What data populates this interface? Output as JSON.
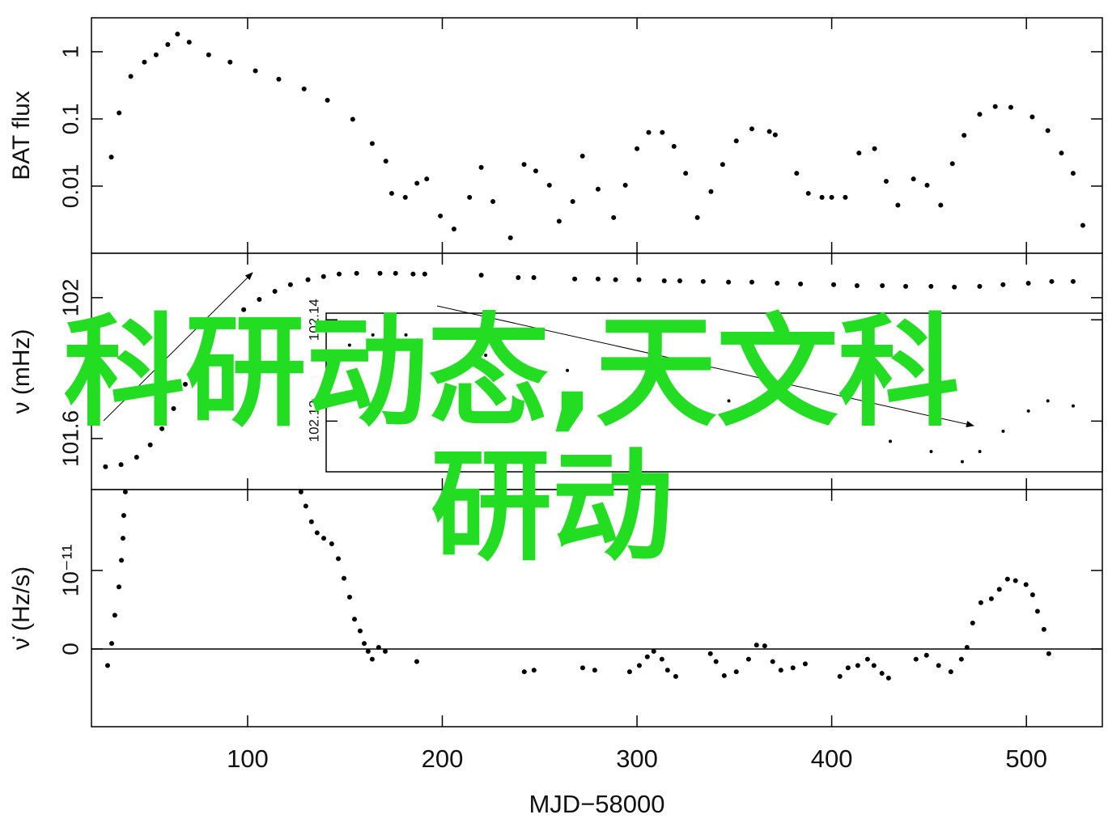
{
  "chart_data": [
    {
      "type": "scatter",
      "ylabel": "BAT flux",
      "yscale": "log",
      "color": "#000000",
      "xlim": [
        19.8,
        539
      ],
      "ylim": [
        0.001,
        3.2
      ],
      "yticks": [
        0.01,
        0.1,
        1
      ],
      "x": [
        30,
        34,
        40,
        47,
        53,
        59,
        64,
        70,
        80,
        91,
        104,
        116,
        129,
        141,
        154,
        164,
        171,
        174,
        181,
        187,
        192,
        199,
        206,
        214,
        220,
        226,
        235,
        242,
        248,
        255,
        260,
        267,
        272,
        280,
        288,
        294,
        300,
        306,
        313,
        319,
        325,
        331,
        338,
        344,
        351,
        359,
        368,
        371,
        382,
        388,
        395,
        400,
        407,
        414,
        422,
        428,
        434,
        442,
        449,
        456,
        462,
        468,
        476,
        484,
        492,
        503,
        511,
        518,
        524,
        529
      ],
      "values": [
        0.027,
        0.123,
        0.43,
        0.7,
        0.9,
        1.28,
        1.83,
        1.39,
        0.9,
        0.7,
        0.52,
        0.39,
        0.28,
        0.19,
        0.099,
        0.043,
        0.0235,
        0.0078,
        0.0068,
        0.011,
        0.0128,
        0.0036,
        0.0023,
        0.0068,
        0.019,
        0.0059,
        0.0017,
        0.021,
        0.0168,
        0.0103,
        0.003,
        0.0059,
        0.028,
        0.009,
        0.0034,
        0.0103,
        0.036,
        0.063,
        0.063,
        0.039,
        0.0155,
        0.0034,
        0.0083,
        0.021,
        0.047,
        0.071,
        0.065,
        0.058,
        0.0155,
        0.0078,
        0.0068,
        0.0068,
        0.0068,
        0.031,
        0.036,
        0.0118,
        0.0052,
        0.0128,
        0.0103,
        0.0052,
        0.0216,
        0.057,
        0.117,
        0.153,
        0.149,
        0.107,
        0.067,
        0.031,
        0.0155,
        0.0026
      ]
    },
    {
      "type": "scatter",
      "ylabel": "ν (mHz)",
      "color": "#000000",
      "xlim": [
        19.8,
        539
      ],
      "ylim": [
        101.455,
        102.126
      ],
      "yticks": [
        101.6,
        102
      ],
      "x": [
        27,
        35,
        43,
        50,
        56,
        62,
        68,
        75,
        81,
        89,
        98,
        106,
        114,
        122,
        131,
        139,
        147,
        156,
        168,
        176,
        185,
        191,
        220,
        239,
        247,
        268,
        280,
        289,
        301,
        314,
        322,
        334,
        347,
        359,
        372,
        384,
        401,
        413,
        426,
        438,
        451,
        463,
        476,
        488,
        501,
        513,
        524
      ],
      "values": [
        101.52,
        101.526,
        101.547,
        101.582,
        101.628,
        101.685,
        101.754,
        101.816,
        101.869,
        101.926,
        101.966,
        101.995,
        102.018,
        102.037,
        102.051,
        102.06,
        102.067,
        102.069,
        102.069,
        102.069,
        102.067,
        102.067,
        102.064,
        102.057,
        102.057,
        102.053,
        102.053,
        102.051,
        102.051,
        102.048,
        102.048,
        102.046,
        102.044,
        102.044,
        102.041,
        102.039,
        102.037,
        102.034,
        102.034,
        102.032,
        102.032,
        102.03,
        102.032,
        102.037,
        102.041,
        102.046,
        102.046
      ]
    },
    {
      "type": "scatter",
      "inset": true,
      "color": "#000000",
      "xlim": [
        140,
        539
      ],
      "ylim": [
        102.11,
        102.1413
      ],
      "yticks": [
        102.12,
        102.14
      ],
      "x": [
        141,
        152,
        164,
        181,
        187,
        222,
        264,
        305,
        347,
        388,
        430,
        451,
        467,
        476,
        488,
        501,
        511,
        524
      ],
      "values": [
        102.131,
        102.135,
        102.137,
        102.137,
        102.136,
        102.133,
        102.13,
        102.127,
        102.124,
        102.121,
        102.116,
        102.114,
        102.112,
        102.114,
        102.118,
        102.122,
        102.124,
        102.123
      ]
    },
    {
      "type": "scatter",
      "ylabel": "ν̇ (Hz/s)",
      "xlabel": "MJD−58000",
      "zero_line": true,
      "color": "#000000",
      "xlim": [
        19.8,
        539
      ],
      "ylim": [
        -9.9e-12,
        2.03e-11
      ],
      "yticks": [
        0,
        {
          "value": 1e-11,
          "label": "10⁻¹¹"
        }
      ],
      "xticks": [
        100,
        200,
        300,
        400,
        500
      ],
      "x": [
        28.1,
        30.2,
        31.8,
        33.9,
        35.2,
        36.0,
        36.4,
        37.2,
        127.4,
        129.9,
        132.8,
        135.7,
        139.1,
        143.2,
        146.6,
        149.5,
        152.4,
        154.9,
        157.8,
        159.9,
        161.9,
        164.0,
        167.3,
        170.7,
        186.9,
        242.1,
        247.1,
        272.1,
        278.3,
        296.2,
        301.2,
        305.3,
        308.6,
        312.8,
        315.7,
        319.9,
        337.7,
        340.6,
        344.8,
        351.0,
        357.3,
        361.4,
        365.6,
        369.7,
        373.9,
        380.1,
        386.4,
        404.2,
        408.4,
        413.4,
        418.4,
        421.7,
        425.8,
        429.2,
        443.3,
        448.7,
        454.9,
        461.2,
        466.6,
        469.5,
        472.4,
        476.6,
        482.0,
        486.1,
        490.3,
        494.4,
        499.8,
        503.2,
        505.7,
        509.0,
        511.5
      ],
      "values": [
        -2.1e-12,
        7e-13,
        4.3e-12,
        7.9e-12,
        1.13e-11,
        1.41e-11,
        1.7e-11,
        2e-11,
        2e-11,
        1.82e-11,
        1.62e-11,
        1.48e-11,
        1.41e-11,
        1.34e-11,
        1.15e-11,
        9e-12,
        6.6e-12,
        3.8e-12,
        2.3e-12,
        7e-13,
        -3e-13,
        -1.3e-12,
        2e-13,
        -3e-13,
        -1.6e-12,
        -2.9e-12,
        -2.7e-12,
        -2.4e-12,
        -2.7e-12,
        -2.9e-12,
        -2.1e-12,
        -1e-12,
        -3e-13,
        -1.3e-12,
        -2.7e-12,
        -3.5e-12,
        -6e-13,
        -1.6e-12,
        -3.4e-12,
        -2.9e-12,
        -1.3e-12,
        5e-13,
        4e-13,
        -1.6e-12,
        -2.7e-12,
        -2.4e-12,
        -1.9e-12,
        -3.5e-12,
        -2.4e-12,
        -2.1e-12,
        -1.3e-12,
        -2.1e-12,
        -3.1e-12,
        -3.7e-12,
        -1.3e-12,
        -8e-13,
        -2.1e-12,
        -2.9e-12,
        -1.3e-12,
        2e-13,
        3.3e-12,
        5.9e-12,
        6.4e-12,
        7.6e-12,
        8.9e-12,
        8.7e-12,
        8.2e-12,
        6.9e-12,
        4.8e-12,
        2.5e-12,
        -6e-13
      ]
    }
  ],
  "overlay_text": [
    "科研动态,天文科",
    "研动"
  ]
}
